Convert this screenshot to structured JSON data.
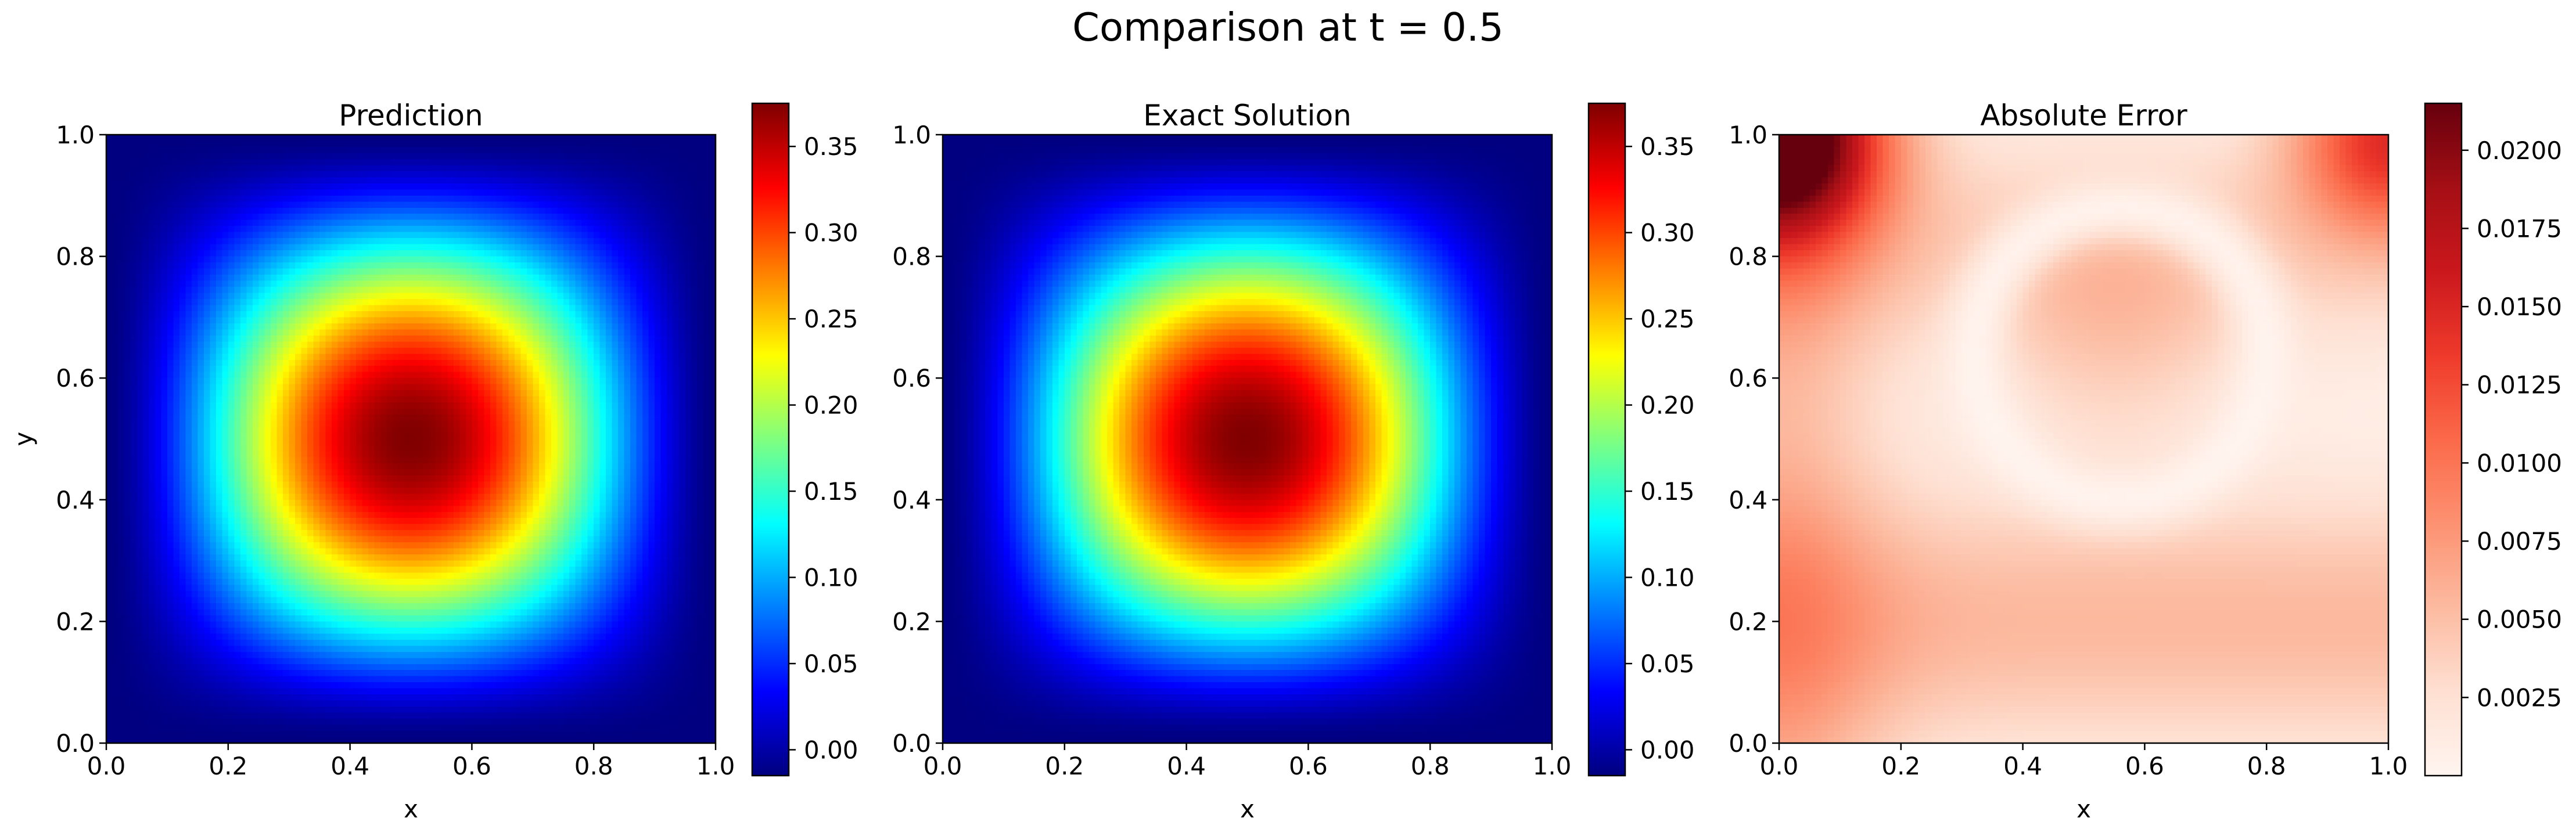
{
  "figure": {
    "suptitle": "Comparison at t = 0.5"
  },
  "chart_data": [
    {
      "type": "heatmap",
      "title": "Prediction",
      "xlabel": "x",
      "ylabel": "y",
      "xlim": [
        0.0,
        1.0
      ],
      "ylim": [
        0.0,
        1.0
      ],
      "xticks": [
        "0.0",
        "0.2",
        "0.4",
        "0.6",
        "0.8",
        "1.0"
      ],
      "yticks": [
        "0.0",
        "0.2",
        "0.4",
        "0.6",
        "0.8",
        "1.0"
      ],
      "colormap": "jet",
      "field": "smooth peak centered at (0.5, 0.5), max ≈ 0.375, ≈ -0.015 at the boundary",
      "colorbar": {
        "range": [
          -0.015,
          0.375
        ],
        "ticks": [
          0.0,
          0.05,
          0.1,
          0.15,
          0.2,
          0.25,
          0.3,
          0.35
        ],
        "tick_labels": [
          "0.00",
          "0.05",
          "0.10",
          "0.15",
          "0.20",
          "0.25",
          "0.30",
          "0.35"
        ]
      }
    },
    {
      "type": "heatmap",
      "title": "Exact Solution",
      "xlabel": "x",
      "ylabel": "",
      "xlim": [
        0.0,
        1.0
      ],
      "ylim": [
        0.0,
        1.0
      ],
      "xticks": [
        "0.0",
        "0.2",
        "0.4",
        "0.6",
        "0.8",
        "1.0"
      ],
      "yticks": [
        "0.0",
        "0.2",
        "0.4",
        "0.6",
        "0.8",
        "1.0"
      ],
      "colormap": "jet",
      "field": "smooth peak centered at (0.5, 0.5), max ≈ 0.375, ≈ -0.015 at the boundary",
      "colorbar": {
        "range": [
          -0.015,
          0.375
        ],
        "ticks": [
          0.0,
          0.05,
          0.1,
          0.15,
          0.2,
          0.25,
          0.3,
          0.35
        ],
        "tick_labels": [
          "0.00",
          "0.05",
          "0.10",
          "0.15",
          "0.20",
          "0.25",
          "0.30",
          "0.35"
        ]
      }
    },
    {
      "type": "heatmap",
      "title": "Absolute Error",
      "xlabel": "x",
      "ylabel": "",
      "xlim": [
        0.0,
        1.0
      ],
      "ylim": [
        0.0,
        1.0
      ],
      "xticks": [
        "0.0",
        "0.2",
        "0.4",
        "0.6",
        "0.8",
        "1.0"
      ],
      "yticks": [
        "0.0",
        "0.2",
        "0.4",
        "0.6",
        "0.8",
        "1.0"
      ],
      "colormap": "Reds",
      "field": "error ≈ 0.0215 at top-left corner, ≈ 0.012 at top-right corner, ≈ 0.006 along bottom, near 0 in a ring around (0.55, 0.65)",
      "colorbar": {
        "range": [
          0.0,
          0.0215
        ],
        "ticks": [
          0.0025,
          0.005,
          0.0075,
          0.01,
          0.0125,
          0.015,
          0.0175,
          0.02
        ],
        "tick_labels": [
          "0.0025",
          "0.0050",
          "0.0075",
          "0.0100",
          "0.0125",
          "0.0150",
          "0.0175",
          "0.0200"
        ]
      }
    }
  ],
  "colors": {
    "axis": "#000000",
    "background": "#ffffff"
  }
}
